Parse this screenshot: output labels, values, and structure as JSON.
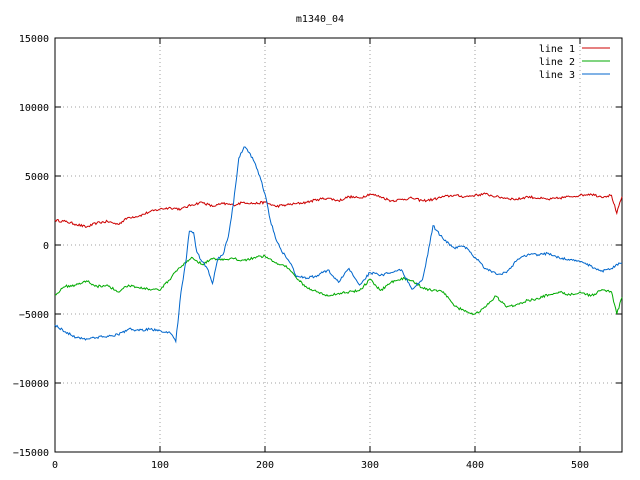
{
  "chart_data": {
    "type": "line",
    "title": "m1340_04",
    "xlim": [
      0,
      540
    ],
    "ylim": [
      -15000,
      15000
    ],
    "xticks": [
      0,
      100,
      200,
      300,
      400,
      500
    ],
    "yticks": [
      -15000,
      -10000,
      -5000,
      0,
      5000,
      10000,
      15000
    ],
    "xtick_labels": [
      "0",
      "100",
      "200",
      "300",
      "400",
      "500"
    ],
    "ytick_labels": [
      "−15000",
      "−10000",
      "−5000",
      "0",
      "5000",
      "10000",
      "15000"
    ],
    "grid": true,
    "legend_position": "top-right",
    "series": [
      {
        "name": "line 1",
        "color": "#cc0000",
        "points": [
          [
            0,
            1800
          ],
          [
            10,
            1700
          ],
          [
            20,
            1500
          ],
          [
            30,
            1300
          ],
          [
            40,
            1600
          ],
          [
            50,
            1700
          ],
          [
            60,
            1500
          ],
          [
            70,
            2000
          ],
          [
            80,
            2100
          ],
          [
            90,
            2400
          ],
          [
            100,
            2600
          ],
          [
            110,
            2700
          ],
          [
            120,
            2600
          ],
          [
            130,
            2900
          ],
          [
            140,
            3100
          ],
          [
            150,
            2800
          ],
          [
            160,
            3000
          ],
          [
            170,
            2900
          ],
          [
            180,
            3100
          ],
          [
            190,
            3000
          ],
          [
            200,
            3100
          ],
          [
            210,
            2800
          ],
          [
            220,
            2900
          ],
          [
            230,
            3000
          ],
          [
            240,
            3100
          ],
          [
            250,
            3300
          ],
          [
            260,
            3400
          ],
          [
            270,
            3200
          ],
          [
            280,
            3500
          ],
          [
            290,
            3400
          ],
          [
            300,
            3700
          ],
          [
            310,
            3500
          ],
          [
            320,
            3200
          ],
          [
            330,
            3300
          ],
          [
            340,
            3400
          ],
          [
            350,
            3200
          ],
          [
            360,
            3300
          ],
          [
            370,
            3500
          ],
          [
            380,
            3600
          ],
          [
            390,
            3500
          ],
          [
            400,
            3600
          ],
          [
            410,
            3700
          ],
          [
            420,
            3500
          ],
          [
            430,
            3400
          ],
          [
            440,
            3300
          ],
          [
            450,
            3500
          ],
          [
            460,
            3400
          ],
          [
            470,
            3300
          ],
          [
            480,
            3400
          ],
          [
            490,
            3500
          ],
          [
            500,
            3600
          ],
          [
            510,
            3700
          ],
          [
            520,
            3500
          ],
          [
            530,
            3600
          ],
          [
            535,
            2300
          ],
          [
            540,
            3500
          ]
        ]
      },
      {
        "name": "line 2",
        "color": "#00aa00",
        "points": [
          [
            0,
            -3600
          ],
          [
            10,
            -3000
          ],
          [
            20,
            -2900
          ],
          [
            30,
            -2600
          ],
          [
            40,
            -3000
          ],
          [
            50,
            -2900
          ],
          [
            60,
            -3400
          ],
          [
            70,
            -2900
          ],
          [
            80,
            -3100
          ],
          [
            90,
            -3200
          ],
          [
            100,
            -3300
          ],
          [
            105,
            -2800
          ],
          [
            110,
            -2500
          ],
          [
            115,
            -1900
          ],
          [
            120,
            -1600
          ],
          [
            130,
            -900
          ],
          [
            140,
            -1400
          ],
          [
            150,
            -1000
          ],
          [
            160,
            -1100
          ],
          [
            170,
            -1000
          ],
          [
            180,
            -1100
          ],
          [
            190,
            -900
          ],
          [
            200,
            -800
          ],
          [
            210,
            -1300
          ],
          [
            220,
            -1500
          ],
          [
            230,
            -2400
          ],
          [
            240,
            -3100
          ],
          [
            250,
            -3400
          ],
          [
            260,
            -3700
          ],
          [
            270,
            -3500
          ],
          [
            280,
            -3400
          ],
          [
            290,
            -3300
          ],
          [
            300,
            -2500
          ],
          [
            310,
            -3300
          ],
          [
            320,
            -2700
          ],
          [
            330,
            -2400
          ],
          [
            340,
            -2600
          ],
          [
            350,
            -3100
          ],
          [
            360,
            -3300
          ],
          [
            370,
            -3400
          ],
          [
            380,
            -4400
          ],
          [
            390,
            -4800
          ],
          [
            400,
            -5000
          ],
          [
            410,
            -4500
          ],
          [
            420,
            -3700
          ],
          [
            430,
            -4500
          ],
          [
            440,
            -4300
          ],
          [
            450,
            -4000
          ],
          [
            460,
            -3900
          ],
          [
            470,
            -3600
          ],
          [
            480,
            -3400
          ],
          [
            490,
            -3600
          ],
          [
            500,
            -3400
          ],
          [
            510,
            -3700
          ],
          [
            520,
            -3300
          ],
          [
            530,
            -3400
          ],
          [
            535,
            -5000
          ],
          [
            540,
            -3800
          ]
        ]
      },
      {
        "name": "line 3",
        "color": "#0066cc",
        "points": [
          [
            0,
            -5800
          ],
          [
            10,
            -6300
          ],
          [
            20,
            -6700
          ],
          [
            30,
            -6800
          ],
          [
            40,
            -6700
          ],
          [
            50,
            -6600
          ],
          [
            60,
            -6500
          ],
          [
            70,
            -6100
          ],
          [
            80,
            -6200
          ],
          [
            90,
            -6100
          ],
          [
            100,
            -6200
          ],
          [
            110,
            -6400
          ],
          [
            115,
            -7000
          ],
          [
            120,
            -3400
          ],
          [
            125,
            -1000
          ],
          [
            128,
            1000
          ],
          [
            132,
            900
          ],
          [
            135,
            -500
          ],
          [
            140,
            -1200
          ],
          [
            145,
            -1700
          ],
          [
            150,
            -2800
          ],
          [
            155,
            -1000
          ],
          [
            160,
            -700
          ],
          [
            165,
            600
          ],
          [
            170,
            3000
          ],
          [
            175,
            6300
          ],
          [
            180,
            7100
          ],
          [
            185,
            6700
          ],
          [
            190,
            6000
          ],
          [
            195,
            5000
          ],
          [
            200,
            3700
          ],
          [
            205,
            1800
          ],
          [
            210,
            500
          ],
          [
            215,
            -300
          ],
          [
            220,
            -900
          ],
          [
            225,
            -1400
          ],
          [
            230,
            -2300
          ],
          [
            240,
            -2400
          ],
          [
            250,
            -2200
          ],
          [
            260,
            -1800
          ],
          [
            270,
            -2700
          ],
          [
            280,
            -1700
          ],
          [
            290,
            -2900
          ],
          [
            300,
            -2000
          ],
          [
            310,
            -2200
          ],
          [
            320,
            -2000
          ],
          [
            330,
            -1800
          ],
          [
            340,
            -3200
          ],
          [
            350,
            -2500
          ],
          [
            355,
            -700
          ],
          [
            360,
            1400
          ],
          [
            370,
            400
          ],
          [
            380,
            -200
          ],
          [
            390,
            -100
          ],
          [
            400,
            -900
          ],
          [
            410,
            -1700
          ],
          [
            420,
            -2100
          ],
          [
            430,
            -2000
          ],
          [
            440,
            -1100
          ],
          [
            450,
            -700
          ],
          [
            460,
            -700
          ],
          [
            470,
            -600
          ],
          [
            480,
            -900
          ],
          [
            490,
            -1100
          ],
          [
            500,
            -1200
          ],
          [
            510,
            -1500
          ],
          [
            520,
            -1900
          ],
          [
            530,
            -1700
          ],
          [
            535,
            -1400
          ],
          [
            540,
            -1300
          ]
        ]
      }
    ]
  }
}
